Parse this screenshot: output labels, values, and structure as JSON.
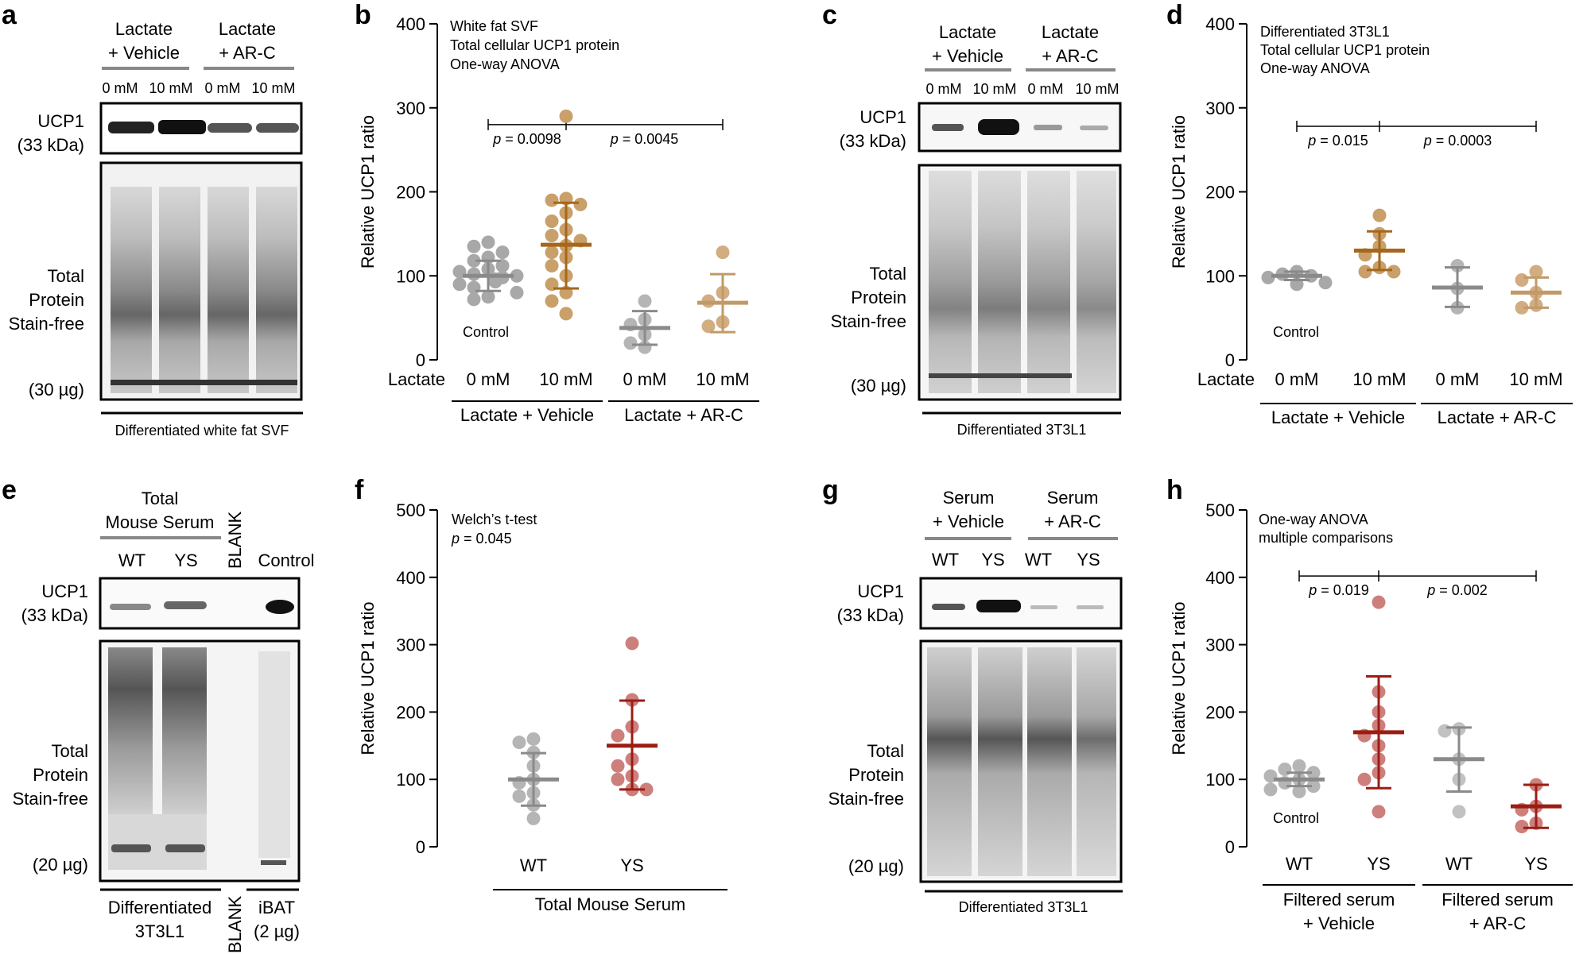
{
  "panels": {
    "a": {
      "letter": "a",
      "groups": [
        {
          "line1": "Lactate",
          "line2": "+ Vehicle"
        },
        {
          "line1": "Lactate",
          "line2": "+ AR-C"
        }
      ],
      "lanes": [
        "0 mM",
        "10 mM",
        "0 mM",
        "10 mM"
      ],
      "ucp1_label": [
        "UCP1",
        "(33 kDa)"
      ],
      "total_label": [
        "Total",
        "Protein",
        "Stain-free"
      ],
      "load": "(30 µg)",
      "caption": "Differentiated white fat SVF"
    },
    "c": {
      "letter": "c",
      "groups": [
        {
          "line1": "Lactate",
          "line2": "+ Vehicle"
        },
        {
          "line1": "Lactate",
          "line2": "+ AR-C"
        }
      ],
      "lanes": [
        "0 mM",
        "10 mM",
        "0 mM",
        "10 mM"
      ],
      "ucp1_label": [
        "UCP1",
        "(33 kDa)"
      ],
      "total_label": [
        "Total",
        "Protein",
        "Stain-free"
      ],
      "load": "(30 µg)",
      "caption": "Differentiated 3T3L1"
    },
    "e": {
      "letter": "e",
      "group": [
        "Total",
        "Mouse Serum"
      ],
      "lanes": [
        "WT",
        "YS"
      ],
      "blank": "BLANK",
      "control": "Control",
      "ucp1_label": [
        "UCP1",
        "(33 kDa)"
      ],
      "total_label": [
        "Total",
        "Protein",
        "Stain-free"
      ],
      "load": "(20 µg)",
      "caption1": [
        "Differentiated",
        "3T3L1"
      ],
      "caption_blank": "BLANK",
      "caption_ibat": [
        "iBAT",
        "(2 µg)"
      ]
    },
    "g": {
      "letter": "g",
      "groups": [
        {
          "line1": "Serum",
          "line2": "+ Vehicle"
        },
        {
          "line1": "Serum",
          "line2": "+ AR-C"
        }
      ],
      "lanes": [
        "WT",
        "YS",
        "WT",
        "YS"
      ],
      "ucp1_label": [
        "UCP1",
        "(33 kDa)"
      ],
      "total_label": [
        "Total",
        "Protein",
        "Stain-free"
      ],
      "load": "(20 µg)",
      "caption": "Differentiated 3T3L1"
    }
  },
  "chart_data": [
    {
      "id": "b",
      "letter": "b",
      "type": "scatter",
      "title": "White fat SVF",
      "notes": [
        "White fat SVF",
        "Total cellular UCP1 protein",
        "One-way ANOVA"
      ],
      "ylabel": "Relative UCP1 ratio",
      "ylim": [
        0,
        400
      ],
      "yticks": [
        0,
        100,
        200,
        300,
        400
      ],
      "x_title": "Lactate",
      "categories": [
        "0 mM",
        "10 mM",
        "0 mM",
        "10 mM"
      ],
      "groups": [
        {
          "label": "Lactate + Vehicle",
          "span": [
            0,
            1
          ]
        },
        {
          "label": "Lactate + AR-C",
          "span": [
            2,
            3
          ]
        }
      ],
      "control_label": "Control",
      "series": [
        {
          "name": "0 mM Vehicle",
          "color": "#a8a8a8",
          "mean": 100,
          "sd_low": 82,
          "sd_high": 118,
          "points": [
            140,
            135,
            128,
            122,
            118,
            112,
            108,
            105,
            102,
            100,
            98,
            96,
            93,
            90,
            86,
            80,
            75,
            72
          ]
        },
        {
          "name": "10 mM Vehicle",
          "color": "#c9a06a",
          "mean": 137,
          "sd_low": 85,
          "sd_high": 187,
          "points": [
            290,
            192,
            190,
            185,
            175,
            165,
            155,
            148,
            142,
            136,
            128,
            122,
            112,
            100,
            90,
            80,
            70,
            55
          ]
        },
        {
          "name": "0 mM AR-C",
          "color": "#b5b5b5",
          "mean": 38,
          "sd_low": 18,
          "sd_high": 58,
          "points": [
            70,
            48,
            42,
            30,
            20,
            15
          ]
        },
        {
          "name": "10 mM AR-C",
          "color": "#d2ad82",
          "mean": 68,
          "sd_low": 33,
          "sd_high": 102,
          "points": [
            128,
            80,
            70,
            45,
            40
          ]
        }
      ],
      "mean_colors": [
        "#8a8a8a",
        "#a5671c",
        "#8a8a8a",
        "#c19a68"
      ],
      "comparisons": [
        {
          "value": 280,
          "from": 0,
          "mid": 1,
          "to": 3,
          "labels": [
            "p = 0.0098",
            "p = 0.0045"
          ]
        }
      ]
    },
    {
      "id": "d",
      "letter": "d",
      "type": "scatter",
      "notes": [
        "Differentiated 3T3L1",
        "Total cellular UCP1 protein",
        "One-way ANOVA"
      ],
      "ylabel": "Relative UCP1 ratio",
      "ylim": [
        0,
        400
      ],
      "yticks": [
        0,
        100,
        200,
        300,
        400
      ],
      "x_title": "Lactate",
      "categories": [
        "0 mM",
        "10 mM",
        "0 mM",
        "10 mM"
      ],
      "groups": [
        {
          "label": "Lactate + Vehicle",
          "span": [
            0,
            1
          ]
        },
        {
          "label": "Lactate + AR-C",
          "span": [
            2,
            3
          ]
        }
      ],
      "control_label": "Control",
      "series": [
        {
          "name": "0 mM Vehicle",
          "color": "#a8a8a8",
          "mean": 100,
          "sd_low": 95,
          "sd_high": 105,
          "points": [
            105,
            102,
            100,
            98,
            92,
            90
          ]
        },
        {
          "name": "10 mM Vehicle",
          "color": "#c9a06a",
          "mean": 130,
          "sd_low": 107,
          "sd_high": 153,
          "points": [
            172,
            150,
            135,
            125,
            110,
            105,
            105
          ]
        },
        {
          "name": "0 mM AR-C",
          "color": "#b5b5b5",
          "mean": 86,
          "sd_low": 63,
          "sd_high": 110,
          "points": [
            112,
            85,
            62
          ]
        },
        {
          "name": "10 mM AR-C",
          "color": "#d2ad82",
          "mean": 80,
          "sd_low": 62,
          "sd_high": 98,
          "points": [
            105,
            95,
            80,
            65,
            62
          ]
        }
      ],
      "mean_colors": [
        "#8a8a8a",
        "#a5671c",
        "#8a8a8a",
        "#c19a68"
      ],
      "comparisons": [
        {
          "value": 278,
          "from": 0,
          "mid": 1,
          "to": 3,
          "labels": [
            "p = 0.015",
            "p = 0.0003"
          ]
        }
      ]
    },
    {
      "id": "f",
      "letter": "f",
      "type": "scatter",
      "notes": [
        "Welch’s t-test",
        "p = 0.045"
      ],
      "ylabel": "Relative UCP1 ratio",
      "ylim": [
        0,
        500
      ],
      "yticks": [
        0,
        100,
        200,
        300,
        400,
        500
      ],
      "x_title": "",
      "categories": [
        "WT",
        "YS"
      ],
      "groups": [
        {
          "label": "Total Mouse Serum",
          "span": [
            0,
            1
          ]
        }
      ],
      "control_label": "",
      "series": [
        {
          "name": "WT",
          "color": "#b5b5b5",
          "mean": 100,
          "sd_low": 61,
          "sd_high": 139,
          "points": [
            160,
            155,
            140,
            120,
            100,
            95,
            80,
            75,
            62,
            42
          ]
        },
        {
          "name": "YS",
          "color": "#cd7f7c",
          "mean": 150,
          "sd_low": 85,
          "sd_high": 217,
          "points": [
            302,
            218,
            178,
            165,
            130,
            120,
            105,
            100,
            85,
            85
          ]
        }
      ],
      "mean_colors": [
        "#8a8a8a",
        "#9b1d14"
      ],
      "comparisons": []
    },
    {
      "id": "h",
      "letter": "h",
      "type": "scatter",
      "notes": [
        "One-way ANOVA",
        "multiple comparisons"
      ],
      "ylabel": "Relative UCP1 ratio",
      "ylim": [
        0,
        500
      ],
      "yticks": [
        0,
        100,
        200,
        300,
        400,
        500
      ],
      "x_title": "",
      "categories": [
        "WT",
        "YS",
        "WT",
        "YS"
      ],
      "groups": [
        {
          "label": "Filtered serum",
          "label2": "+ Vehicle",
          "span": [
            0,
            1
          ]
        },
        {
          "label": "Filtered serum",
          "label2": "+ AR-C",
          "span": [
            2,
            3
          ]
        }
      ],
      "control_label": "Control",
      "series": [
        {
          "name": "WT Vehicle",
          "color": "#b5b5b5",
          "mean": 100,
          "sd_low": 90,
          "sd_high": 110,
          "points": [
            120,
            115,
            110,
            105,
            100,
            95,
            90,
            85,
            82
          ]
        },
        {
          "name": "YS Vehicle",
          "color": "#cd7f7c",
          "mean": 170,
          "sd_low": 87,
          "sd_high": 253,
          "points": [
            363,
            230,
            200,
            180,
            165,
            150,
            130,
            110,
            100,
            52
          ]
        },
        {
          "name": "WT AR-C",
          "color": "#c2c2c2",
          "mean": 130,
          "sd_low": 82,
          "sd_high": 177,
          "points": [
            175,
            172,
            130,
            100,
            52
          ]
        },
        {
          "name": "YS AR-C",
          "color": "#cd7f7c",
          "mean": 60,
          "sd_low": 28,
          "sd_high": 92,
          "points": [
            92,
            60,
            55,
            35,
            30
          ]
        }
      ],
      "mean_colors": [
        "#8a8a8a",
        "#9b1d14",
        "#8a8a8a",
        "#9b1d14"
      ],
      "comparisons": [
        {
          "value": 402,
          "from": 0,
          "mid": 1,
          "to": 3,
          "labels": [
            "p = 0.019",
            "p = 0.002"
          ]
        }
      ]
    }
  ]
}
